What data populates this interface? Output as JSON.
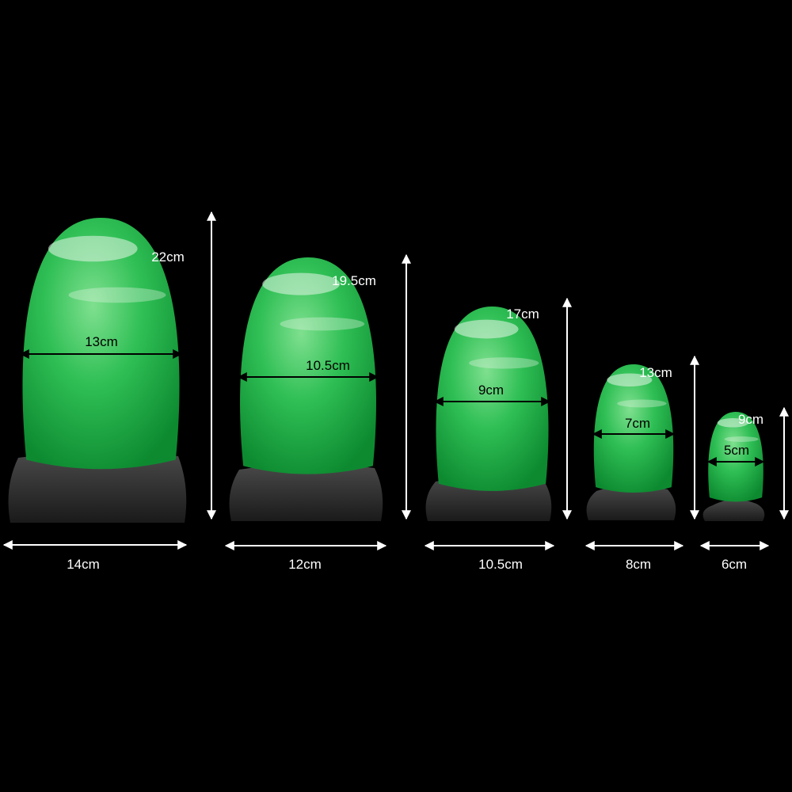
{
  "colors": {
    "background": "#000000",
    "egg": "#22b34a",
    "egg_highlight": "#e8f5e9",
    "base": "#2b2b2b",
    "label": "#ffffff",
    "inner_arrow": "#000000"
  },
  "products": [
    {
      "height": "22cm",
      "egg_width": "13cm",
      "base_width": "14cm"
    },
    {
      "height": "19.5cm",
      "egg_width": "10.5cm",
      "base_width": "12cm"
    },
    {
      "height": "17cm",
      "egg_width": "9cm",
      "base_width": "10.5cm"
    },
    {
      "height": "13cm",
      "egg_width": "7cm",
      "base_width": "8cm"
    },
    {
      "height": "9cm",
      "egg_width": "5cm",
      "base_width": "6cm"
    }
  ]
}
